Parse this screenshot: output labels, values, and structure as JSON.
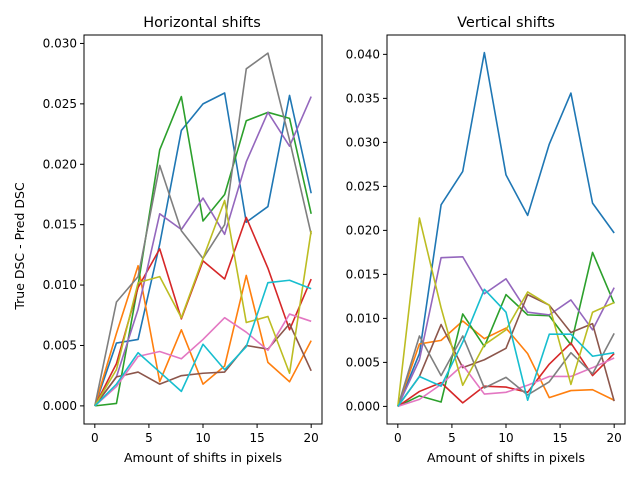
{
  "chart_data": [
    {
      "type": "line",
      "title": "Horizontal shifts",
      "xlabel": "Amount of shifts in pixels",
      "ylabel": "True DSC - Pred DSC",
      "xlim": [
        -1,
        21
      ],
      "ylim": [
        -0.0015,
        0.0307
      ],
      "xticks": [
        0,
        5,
        10,
        15,
        20
      ],
      "xtick_labels": [
        "0",
        "5",
        "10",
        "15",
        "20"
      ],
      "yticks": [
        0,
        0.005,
        0.01,
        0.015,
        0.02,
        0.025,
        0.03
      ],
      "ytick_labels": [
        "0.000",
        "0.005",
        "0.010",
        "0.015",
        "0.020",
        "0.025",
        "0.030"
      ],
      "grid": false,
      "x": [
        0,
        2,
        4,
        6,
        8,
        10,
        12,
        14,
        16,
        18,
        20
      ],
      "series": [
        {
          "color": "#1f77b4",
          "values": [
            0,
            0.0052,
            0.0055,
            0.0134,
            0.0228,
            0.025,
            0.0259,
            0.0152,
            0.0165,
            0.0257,
            0.0176
          ]
        },
        {
          "color": "#ff7f0e",
          "values": [
            0,
            0.006,
            0.0116,
            0.002,
            0.0063,
            0.0018,
            0.0033,
            0.0108,
            0.0036,
            0.002,
            0.0054
          ]
        },
        {
          "color": "#2ca02c",
          "values": [
            0,
            0.0002,
            0.01,
            0.0212,
            0.0256,
            0.0153,
            0.0175,
            0.0236,
            0.0243,
            0.0238,
            0.0159
          ]
        },
        {
          "color": "#d62728",
          "values": [
            0,
            0.0035,
            0.0098,
            0.013,
            0.0072,
            0.012,
            0.0105,
            0.0156,
            0.0114,
            0.0063,
            0.0105
          ]
        },
        {
          "color": "#9467bd",
          "values": [
            0,
            0.0024,
            0.008,
            0.0159,
            0.0146,
            0.0172,
            0.0142,
            0.0202,
            0.0243,
            0.0215,
            0.0256
          ]
        },
        {
          "color": "#8c564b",
          "values": [
            0,
            0.0024,
            0.0028,
            0.0018,
            0.0025,
            0.0027,
            0.0028,
            0.005,
            0.0047,
            0.0068,
            0.0029
          ]
        },
        {
          "color": "#e377c2",
          "values": [
            0,
            0.0016,
            0.0041,
            0.0045,
            0.0039,
            0.0055,
            0.0073,
            0.0061,
            0.0046,
            0.0076,
            0.007
          ]
        },
        {
          "color": "#7f7f7f",
          "values": [
            0,
            0.0086,
            0.0107,
            0.0199,
            0.0145,
            0.0122,
            0.015,
            0.0279,
            0.0292,
            0.022,
            0.0142
          ]
        },
        {
          "color": "#bcbd22",
          "values": [
            0,
            0.003,
            0.0102,
            0.0107,
            0.0073,
            0.0122,
            0.017,
            0.0069,
            0.0074,
            0.0027,
            0.0145
          ]
        },
        {
          "color": "#17becf",
          "values": [
            0,
            0.0018,
            0.0044,
            0.0028,
            0.0012,
            0.0051,
            0.003,
            0.0049,
            0.0102,
            0.0104,
            0.0097
          ]
        }
      ]
    },
    {
      "type": "line",
      "title": "Vertical shifts",
      "xlabel": "Amount of shifts in pixels",
      "ylabel": "",
      "xlim": [
        -1,
        21
      ],
      "ylim": [
        -0.002,
        0.0422
      ],
      "xticks": [
        0,
        5,
        10,
        15,
        20
      ],
      "xtick_labels": [
        "0",
        "5",
        "10",
        "15",
        "20"
      ],
      "yticks": [
        0,
        0.005,
        0.01,
        0.015,
        0.02,
        0.025,
        0.03,
        0.035,
        0.04
      ],
      "ytick_labels": [
        "0.000",
        "0.005",
        "0.010",
        "0.015",
        "0.020",
        "0.025",
        "0.030",
        "0.035",
        "0.040"
      ],
      "grid": false,
      "x": [
        0,
        2,
        4,
        6,
        8,
        10,
        12,
        14,
        16,
        18,
        20
      ],
      "series": [
        {
          "color": "#1f77b4",
          "values": [
            0,
            0.006,
            0.0229,
            0.0267,
            0.0402,
            0.0263,
            0.0217,
            0.0298,
            0.0356,
            0.0231,
            0.0197
          ]
        },
        {
          "color": "#ff7f0e",
          "values": [
            0,
            0.0071,
            0.0075,
            0.0097,
            0.0077,
            0.0089,
            0.006,
            0.001,
            0.0018,
            0.0019,
            0.0007
          ]
        },
        {
          "color": "#2ca02c",
          "values": [
            0,
            0.0012,
            0.0005,
            0.0105,
            0.0068,
            0.0127,
            0.0104,
            0.0103,
            0.007,
            0.0175,
            0.0117
          ]
        },
        {
          "color": "#d62728",
          "values": [
            0,
            0.0017,
            0.0027,
            0.0004,
            0.0023,
            0.0022,
            0.0016,
            0.0048,
            0.0072,
            0.0035,
            0.006
          ]
        },
        {
          "color": "#9467bd",
          "values": [
            0,
            0.0053,
            0.0169,
            0.017,
            0.0128,
            0.0145,
            0.0107,
            0.0104,
            0.0121,
            0.0087,
            0.0135
          ]
        },
        {
          "color": "#8c564b",
          "values": [
            0,
            0.0034,
            0.0093,
            0.0044,
            0.0053,
            0.0066,
            0.0127,
            0.0115,
            0.0084,
            0.0094,
            0.0006
          ]
        },
        {
          "color": "#e377c2",
          "values": [
            0,
            0.0008,
            0.0025,
            0.0047,
            0.0014,
            0.0016,
            0.0024,
            0.0034,
            0.0034,
            0.0044,
            0.0055
          ]
        },
        {
          "color": "#7f7f7f",
          "values": [
            0,
            0.008,
            0.0035,
            0.008,
            0.0021,
            0.0033,
            0.0013,
            0.0028,
            0.0061,
            0.0037,
            0.0083
          ]
        },
        {
          "color": "#bcbd22",
          "values": [
            0,
            0.0214,
            0.0112,
            0.0024,
            0.007,
            0.0087,
            0.013,
            0.0115,
            0.0025,
            0.0107,
            0.0118
          ]
        },
        {
          "color": "#17becf",
          "values": [
            0,
            0.0034,
            0.0023,
            0.0073,
            0.0133,
            0.0107,
            0.0007,
            0.0082,
            0.0082,
            0.0057,
            0.0061
          ]
        }
      ]
    }
  ]
}
